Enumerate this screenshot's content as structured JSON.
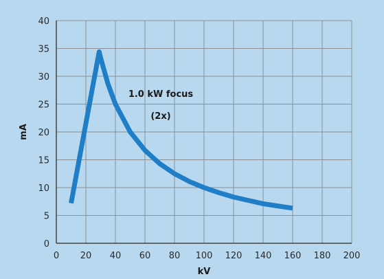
{
  "chart_data": {
    "type": "line",
    "title": "",
    "xlabel": "kV",
    "ylabel": "mA",
    "xlim": [
      0,
      200
    ],
    "ylim": [
      0,
      40
    ],
    "xticks": [
      0,
      20,
      40,
      60,
      80,
      100,
      120,
      140,
      160,
      180,
      200
    ],
    "yticks": [
      0,
      5,
      10,
      15,
      20,
      25,
      30,
      35,
      40
    ],
    "grid": true,
    "annotation_lines": [
      "1.0 kW focus",
      "(2x)"
    ],
    "series": [
      {
        "color": "#1f7ec6",
        "x": [
          10,
          29,
          30,
          35,
          40,
          50,
          60,
          70,
          80,
          90,
          100,
          110,
          120,
          130,
          140,
          150,
          160
        ],
        "y": [
          7.2,
          34.4,
          33.3,
          28.6,
          25.0,
          20.0,
          16.7,
          14.3,
          12.5,
          11.1,
          10.0,
          9.1,
          8.3,
          7.7,
          7.1,
          6.7,
          6.3
        ]
      }
    ]
  }
}
